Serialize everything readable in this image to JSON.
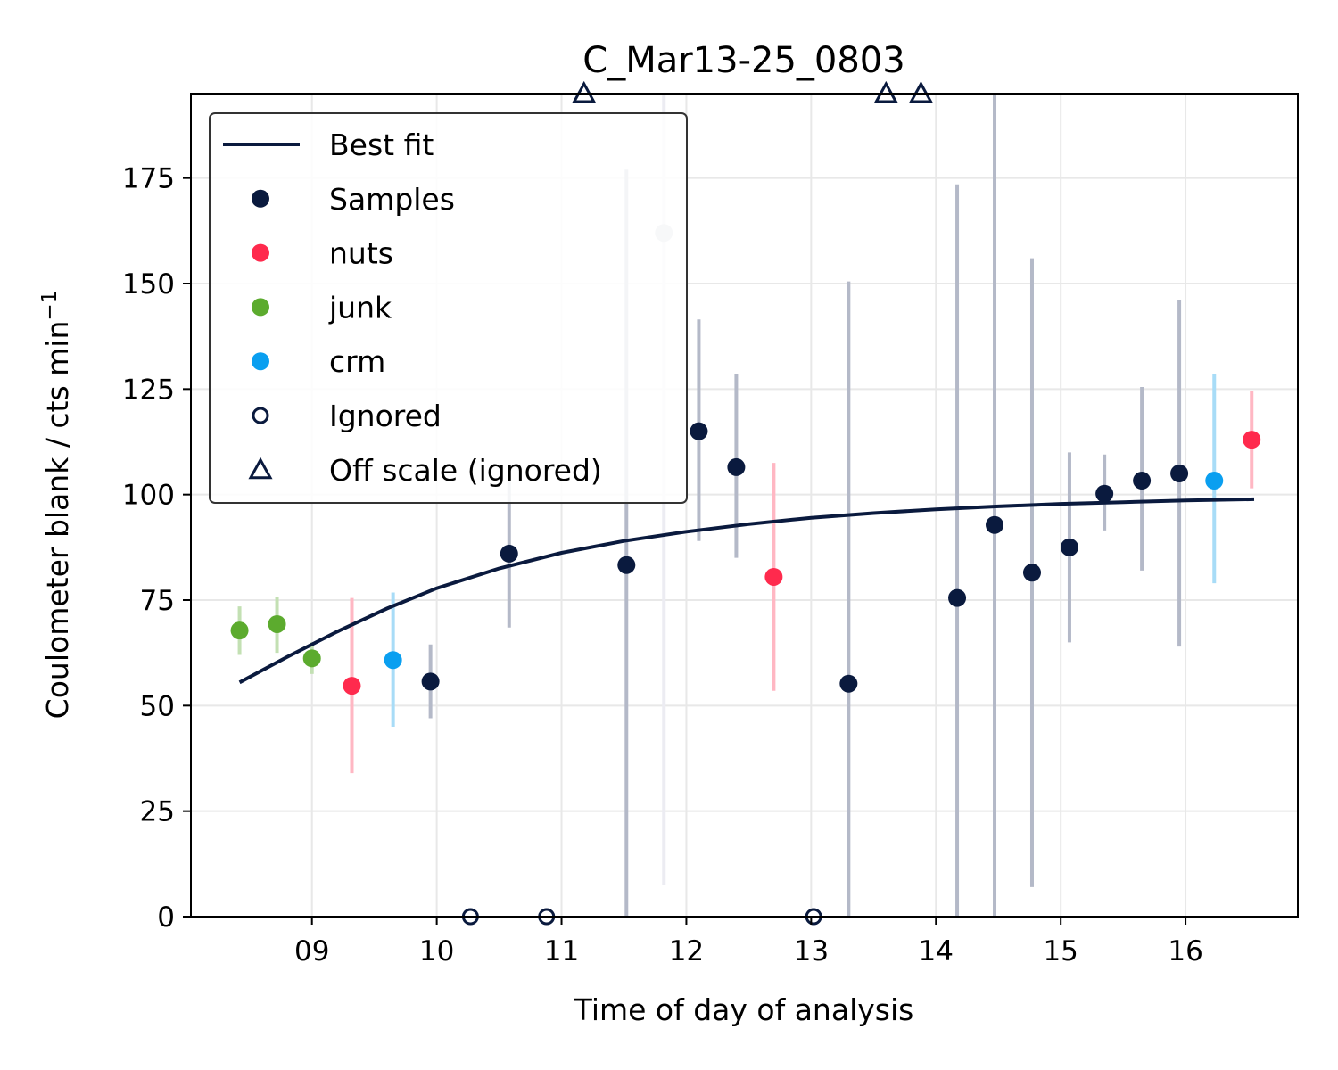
{
  "chart_data": {
    "type": "scatter",
    "title": "C_Mar13-25_0803",
    "xlabel": "Time of day of analysis",
    "ylabel": "Coulometer blank / cts min",
    "ylabel_superscript": "−1",
    "xlim": [
      8.03,
      16.9
    ],
    "ylim": [
      0,
      195
    ],
    "x_ticks": [
      9,
      10,
      11,
      12,
      13,
      14,
      15,
      16
    ],
    "x_tick_labels": [
      "09",
      "10",
      "11",
      "12",
      "13",
      "14",
      "15",
      "16"
    ],
    "y_ticks": [
      0,
      25,
      50,
      75,
      100,
      125,
      150,
      175
    ],
    "y_tick_labels": [
      "0",
      "25",
      "50",
      "75",
      "100",
      "125",
      "150",
      "175"
    ],
    "grid": true,
    "legend_position": "top-left",
    "legend": [
      {
        "label": "Best fit",
        "kind": "line",
        "color": "#0a1a3e"
      },
      {
        "label": "Samples",
        "kind": "dot",
        "color": "#0a1a3e"
      },
      {
        "label": "nuts",
        "kind": "dot",
        "color": "#ff2a4d"
      },
      {
        "label": "junk",
        "kind": "dot",
        "color": "#5cab2e"
      },
      {
        "label": "crm",
        "kind": "dot",
        "color": "#0a9ff0"
      },
      {
        "label": "Ignored",
        "kind": "open-circle",
        "color": "#0a1a3e"
      },
      {
        "label": "Off scale (ignored)",
        "kind": "triangle",
        "color": "#0a1a3e"
      }
    ],
    "colors": {
      "samples": "#0a1a3e",
      "nuts": "#ff2a4d",
      "junk": "#5cab2e",
      "crm": "#0a9ff0",
      "faded": "#cbced8",
      "samples_err": "#b4b9c8",
      "nuts_err": "#ffb7c3",
      "junk_err": "#c3e0b3",
      "crm_err": "#a8dcf7",
      "faded_err": "#ececf2"
    },
    "series": [
      {
        "name": "Best fit",
        "kind": "line",
        "x": [
          8.42,
          8.8,
          9.2,
          9.6,
          10.0,
          10.5,
          11.0,
          11.5,
          12.0,
          12.5,
          13.0,
          13.5,
          14.0,
          14.5,
          15.0,
          15.5,
          16.0,
          16.55
        ],
        "y": [
          55.5,
          61.5,
          67.5,
          73.0,
          77.8,
          82.5,
          86.2,
          89.0,
          91.2,
          93.0,
          94.5,
          95.6,
          96.5,
          97.2,
          97.8,
          98.2,
          98.6,
          98.9
        ]
      },
      {
        "name": "Samples",
        "kind": "points",
        "points": [
          {
            "x": 9.95,
            "y": 55.7,
            "lo": 47,
            "hi": 64.5
          },
          {
            "x": 10.58,
            "y": 86,
            "lo": 68.5,
            "hi": 103
          },
          {
            "x": 11.52,
            "y": 83.3,
            "lo": 0,
            "hi": 177
          },
          {
            "x": 12.1,
            "y": 115,
            "lo": 89,
            "hi": 141.5
          },
          {
            "x": 12.4,
            "y": 106.5,
            "lo": 85,
            "hi": 128.5
          },
          {
            "x": 13.3,
            "y": 55.2,
            "lo": 0,
            "hi": 150.5
          },
          {
            "x": 14.17,
            "y": 75.5,
            "lo": 0,
            "hi": 173.5
          },
          {
            "x": 14.47,
            "y": 92.8,
            "lo": 0,
            "hi": 195
          },
          {
            "x": 14.77,
            "y": 81.5,
            "lo": 7,
            "hi": 156
          },
          {
            "x": 15.07,
            "y": 87.5,
            "lo": 65,
            "hi": 110
          },
          {
            "x": 15.35,
            "y": 100.2,
            "lo": 91.5,
            "hi": 109.5
          },
          {
            "x": 15.65,
            "y": 103.3,
            "lo": 82,
            "hi": 125.5
          },
          {
            "x": 15.95,
            "y": 105,
            "lo": 64,
            "hi": 146
          }
        ]
      },
      {
        "name": "nuts",
        "kind": "points",
        "points": [
          {
            "x": 9.32,
            "y": 54.7,
            "lo": 34,
            "hi": 75.5
          },
          {
            "x": 12.7,
            "y": 80.5,
            "lo": 53.5,
            "hi": 107.5
          },
          {
            "x": 16.53,
            "y": 113,
            "lo": 101.5,
            "hi": 124.5
          }
        ]
      },
      {
        "name": "junk",
        "kind": "points",
        "points": [
          {
            "x": 8.42,
            "y": 67.8,
            "lo": 62,
            "hi": 73.5
          },
          {
            "x": 8.72,
            "y": 69.3,
            "lo": 62.5,
            "hi": 75.8
          },
          {
            "x": 9.0,
            "y": 61.2,
            "lo": 57.5,
            "hi": 65
          }
        ]
      },
      {
        "name": "crm",
        "kind": "points",
        "points": [
          {
            "x": 9.65,
            "y": 60.8,
            "lo": 45,
            "hi": 76.8
          },
          {
            "x": 16.23,
            "y": 103.3,
            "lo": 79,
            "hi": 128.5
          }
        ]
      },
      {
        "name": "Excluded sample (faded)",
        "kind": "points",
        "points": [
          {
            "x": 11.82,
            "y": 162,
            "lo": 7.5,
            "hi": 195
          }
        ]
      },
      {
        "name": "Ignored",
        "kind": "open-circles",
        "points": [
          {
            "x": 10.27,
            "y": 0
          },
          {
            "x": 10.88,
            "y": 0
          },
          {
            "x": 13.02,
            "y": 0
          }
        ]
      },
      {
        "name": "Off scale (ignored)",
        "kind": "triangles",
        "points": [
          {
            "x": 11.18,
            "y": 195
          },
          {
            "x": 13.6,
            "y": 195
          },
          {
            "x": 13.88,
            "y": 195
          }
        ]
      }
    ]
  }
}
